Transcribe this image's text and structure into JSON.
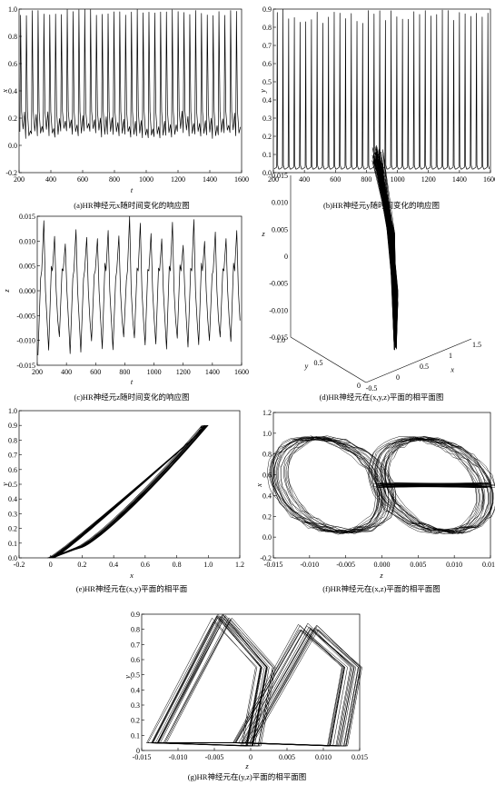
{
  "figure": {
    "panels": [
      {
        "id": "a",
        "caption": "(a)HR神经元x随时间变化的响应图",
        "chart_data": {
          "type": "line",
          "xlabel": "t",
          "ylabel": "x",
          "xlim": [
            200,
            1600
          ],
          "ylim": [
            -0.2,
            1.0
          ],
          "xticks": [
            "200",
            "400",
            "600",
            "800",
            "1000",
            "1200",
            "1400",
            "1600"
          ],
          "yticks": [
            "-0.2",
            "0.0",
            "0.2",
            "0.4",
            "0.6",
            "0.8",
            "1.0"
          ],
          "series": [
            {
              "pattern": "periodic bursting oscillation",
              "x_range": [
                200,
                1600
              ],
              "spike_peaks_approx": [
                0.95,
                1.0
              ],
              "trough_min_approx": 0.05,
              "inter_spike_level_approx": 0.25,
              "spike_count_approx": 38
            }
          ]
        }
      },
      {
        "id": "b",
        "caption": "(b)HR神经元y随时间变化的响应图",
        "chart_data": {
          "type": "line",
          "xlabel": "t",
          "ylabel": "y",
          "xlim": [
            200,
            1600
          ],
          "ylim": [
            0.0,
            0.9
          ],
          "xticks": [
            "200",
            "400",
            "600",
            "800",
            "1000",
            "1200",
            "1400",
            "1600"
          ],
          "yticks": [
            "0.0",
            "0.1",
            "0.2",
            "0.3",
            "0.4",
            "0.5",
            "0.6",
            "0.7",
            "0.8",
            "0.9"
          ],
          "series": [
            {
              "pattern": "periodic spikes from near zero baseline",
              "x_range": [
                200,
                1600
              ],
              "spike_peaks_approx": [
                0.82,
                0.9
              ],
              "baseline_approx": 0.02,
              "spike_count_approx": 38
            }
          ]
        }
      },
      {
        "id": "c",
        "caption": "(c)HR神经元z随时间变化的响应图",
        "chart_data": {
          "type": "line",
          "xlabel": "t",
          "ylabel": "z",
          "xlim": [
            200,
            1600
          ],
          "ylim": [
            -0.015,
            0.015
          ],
          "xticks": [
            "200",
            "400",
            "600",
            "800",
            "1000",
            "1200",
            "1400",
            "1600"
          ],
          "yticks": [
            "-0.015",
            "-0.010",
            "-0.005",
            "0.000",
            "0.005",
            "0.010",
            "0.015"
          ],
          "series": [
            {
              "pattern": "irregular oscillation",
              "x_range": [
                200,
                1600
              ],
              "max_approx": 0.015,
              "min_approx": -0.013,
              "cycle_count_approx": 19
            }
          ]
        }
      },
      {
        "id": "d",
        "caption": "(d)HR神经元在(x,y,z)平面的相平面图",
        "chart_data": {
          "type": "scatter",
          "projection": "3d",
          "xlabel": "x",
          "ylabel": "y",
          "zlabel": "z",
          "xticks": [
            "-0.5",
            "0",
            "0.5",
            "1",
            "1.5"
          ],
          "yticks": [
            "0",
            "0.5",
            "1.0"
          ],
          "zticks": [
            "-0.015",
            "-0.010",
            "-0.005",
            "0",
            "0.005",
            "0.010",
            "0.015"
          ],
          "series": [
            {
              "pattern": "chaotic attractor trajectory"
            }
          ]
        }
      },
      {
        "id": "e",
        "caption": "(e)HR神经元在(x,y)平面的相平面",
        "chart_data": {
          "type": "line",
          "xlabel": "x",
          "ylabel": "y",
          "xlim": [
            -0.2,
            1.2
          ],
          "ylim": [
            0.0,
            1.0
          ],
          "xticks": [
            "-0.2",
            "0",
            "0.2",
            "0.4",
            "0.6",
            "0.8",
            "1.0",
            "1.2"
          ],
          "yticks": [
            "0.0",
            "0.1",
            "0.2",
            "0.3",
            "0.4",
            "0.5",
            "0.6",
            "0.7",
            "0.8",
            "0.9",
            "1.0"
          ],
          "series": [
            {
              "pattern": "narrow elongated loop",
              "start": [
                0.0,
                0.0
              ],
              "tip": [
                0.95,
                0.9
              ],
              "lower_lobe_near": [
                0.18,
                0.07
              ]
            }
          ]
        }
      },
      {
        "id": "f",
        "caption": "(f)HR神经元在(x,z)平面的相平面图",
        "chart_data": {
          "type": "line",
          "xlabel": "z",
          "ylabel": "x",
          "xlim": [
            -0.015,
            0.015
          ],
          "ylim": [
            -0.2,
            1.2
          ],
          "xticks": [
            "-0.015",
            "-0.010",
            "-0.005",
            "0.000",
            "0.005",
            "0.010",
            "0.015"
          ],
          "yticks": [
            "-0.2",
            "0.0",
            "0.2",
            "0.4",
            "0.6",
            "0.8",
            "1.0",
            "1.2"
          ],
          "series": [
            {
              "pattern": "two interleaved teardrop loops",
              "lobe_centers_approx": [
                [
                  -0.007,
                  0.5
                ],
                [
                  0.007,
                  0.5
                ]
              ],
              "x_extent": [
                -0.014,
                0.015
              ],
              "y_extent": [
                0.05,
                1.0
              ]
            }
          ]
        }
      },
      {
        "id": "g",
        "caption": "(g)HR神经元在(y,z)平面的相平面图",
        "chart_data": {
          "type": "line",
          "xlabel": "z",
          "ylabel": "y",
          "xlim": [
            -0.015,
            0.015
          ],
          "ylim": [
            0.0,
            0.9
          ],
          "xticks": [
            "-0.015",
            "-0.010",
            "-0.005",
            "0",
            "0.005",
            "0.010",
            "0.015"
          ],
          "yticks": [
            "0",
            "0.1",
            "0.2",
            "0.3",
            "0.4",
            "0.5",
            "0.6",
            "0.7",
            "0.8",
            "0.9"
          ],
          "series": [
            {
              "pattern": "two interleaved triangular loops",
              "lobe_apexes_approx": [
                [
                  -0.004,
                  0.9
                ],
                [
                  0.008,
                  0.85
                ]
              ],
              "x_extent": [
                -0.014,
                0.013
              ],
              "y_extent": [
                0.0,
                0.92
              ]
            }
          ]
        }
      }
    ]
  }
}
